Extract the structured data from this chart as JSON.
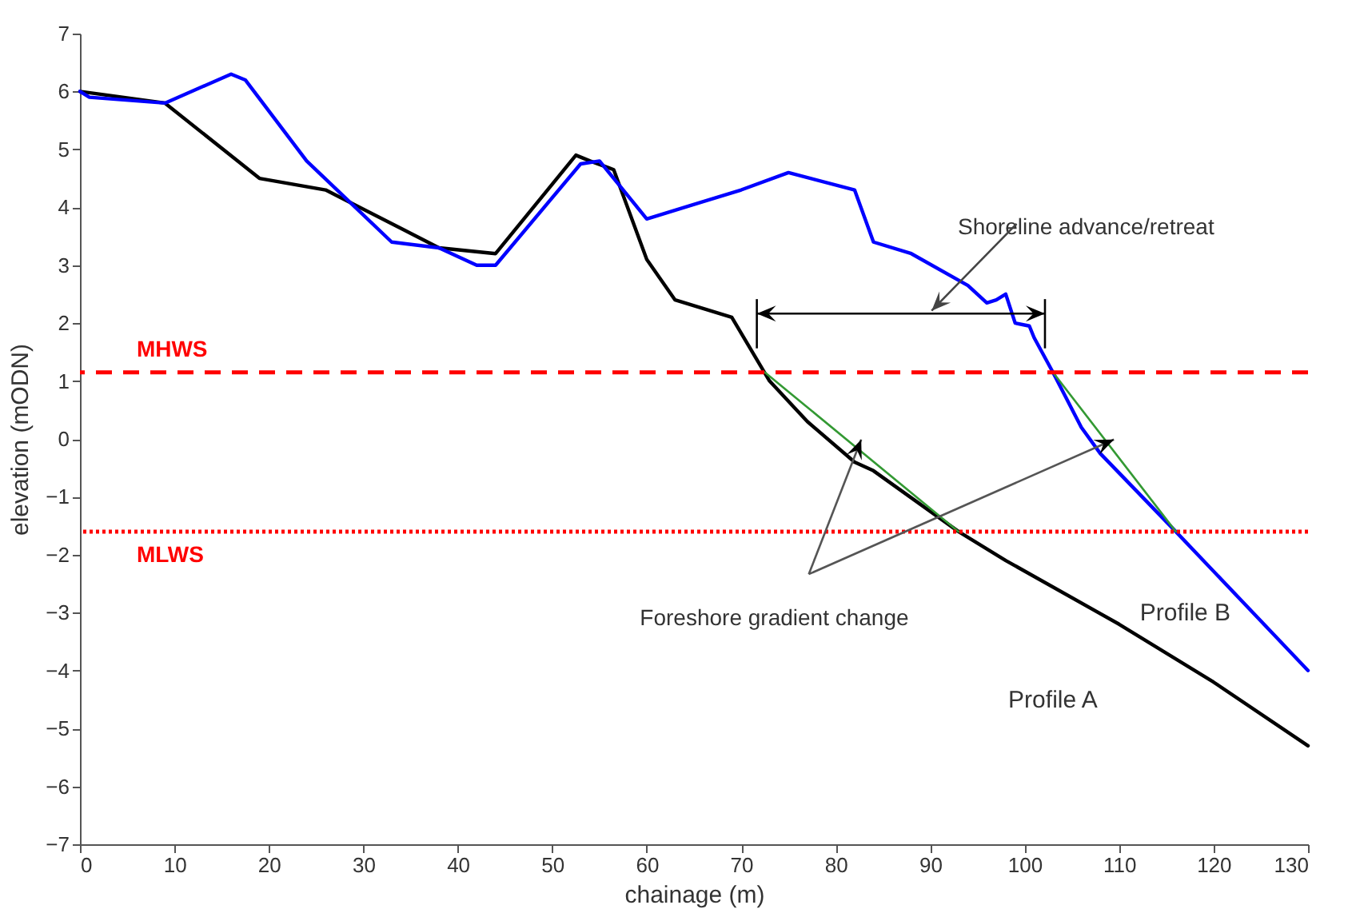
{
  "chart_data": {
    "type": "line",
    "xlabel": "chainage (m)",
    "ylabel": "elevation (mODN)",
    "xlim": [
      0,
      130
    ],
    "xticks": [
      0,
      10,
      20,
      30,
      40,
      50,
      60,
      70,
      80,
      90,
      100,
      110,
      120,
      130
    ],
    "ylim": [
      -7,
      7
    ],
    "yticks": [
      -7,
      -6,
      -5,
      -4,
      -3,
      -2,
      -1,
      0,
      1,
      2,
      3,
      4,
      5,
      6,
      7
    ],
    "grid": false,
    "series": [
      {
        "name": "Profile A",
        "color": "#000000",
        "x": [
          0,
          9,
          19,
          26,
          38,
          44,
          52.5,
          54,
          56.5,
          60,
          63,
          69,
          73,
          77,
          82,
          84,
          93,
          98,
          110,
          120,
          130
        ],
        "values": [
          6.0,
          5.8,
          4.5,
          4.3,
          3.3,
          3.2,
          4.9,
          4.8,
          4.65,
          3.1,
          2.4,
          2.1,
          1.0,
          0.3,
          -0.4,
          -0.55,
          -1.6,
          -2.1,
          -3.2,
          -4.2,
          -5.3
        ]
      },
      {
        "name": "Profile B",
        "color": "#0000ff",
        "x": [
          0,
          1,
          9,
          16,
          17.5,
          24,
          33,
          38,
          42,
          44,
          53,
          55,
          60,
          70,
          75,
          82,
          84,
          88,
          94,
          96,
          97,
          98,
          99,
          100.5,
          101,
          103,
          106,
          108,
          116,
          130
        ],
        "values": [
          6.0,
          5.9,
          5.8,
          6.3,
          6.2,
          4.8,
          3.4,
          3.3,
          3.0,
          3.0,
          4.75,
          4.8,
          3.8,
          4.3,
          4.6,
          4.3,
          3.4,
          3.2,
          2.65,
          2.35,
          2.4,
          2.5,
          2.0,
          1.95,
          1.75,
          1.15,
          0.2,
          -0.25,
          -1.6,
          -4.0
        ]
      },
      {
        "type": "line",
        "color": "#339933",
        "x": [
          72.5,
          93
        ],
        "values": [
          1.15,
          -1.6
        ]
      },
      {
        "type": "line",
        "color": "#339933",
        "x": [
          103,
          116
        ],
        "values": [
          1.15,
          -1.6
        ]
      }
    ],
    "ref_lines": [
      {
        "axis": "y",
        "value": 1.15,
        "label": "MHWS",
        "color": "#ff0000",
        "line_style": "dashed"
      },
      {
        "axis": "y",
        "value": -1.6,
        "label": "MLWS",
        "color": "#ff0000",
        "line_style": "dotted"
      }
    ],
    "annotations": [
      "Shoreline advance/retreat",
      "Foreshore gradient change"
    ]
  }
}
